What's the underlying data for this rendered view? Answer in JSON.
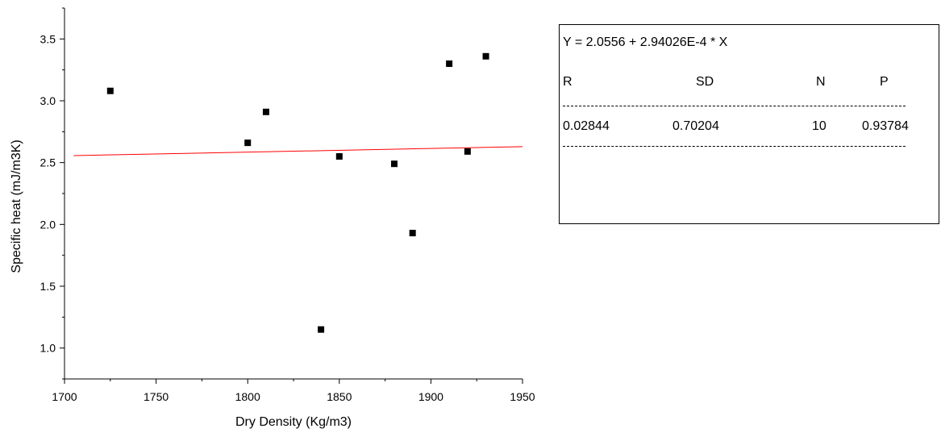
{
  "chart_data": {
    "type": "scatter",
    "title": "",
    "xlabel": "Dry Density (Kg/m3)",
    "ylabel": "Specific heat (mJ/m3K)",
    "xlim": [
      1700,
      1950
    ],
    "ylim": [
      0.75,
      3.75
    ],
    "xticks": [
      1700,
      1750,
      1800,
      1850,
      1900,
      1950
    ],
    "yticks": [
      1.0,
      1.5,
      2.0,
      2.5,
      3.0,
      3.5
    ],
    "ytick_labels": [
      "1.0",
      "1.5",
      "2.0",
      "2.5",
      "3.0",
      "3.5"
    ],
    "grid": false,
    "points": [
      {
        "x": 1725,
        "y": 3.08
      },
      {
        "x": 1800,
        "y": 2.66
      },
      {
        "x": 1810,
        "y": 2.91
      },
      {
        "x": 1840,
        "y": 1.15
      },
      {
        "x": 1850,
        "y": 2.55
      },
      {
        "x": 1880,
        "y": 2.49
      },
      {
        "x": 1890,
        "y": 1.93
      },
      {
        "x": 1910,
        "y": 3.3
      },
      {
        "x": 1920,
        "y": 2.59
      },
      {
        "x": 1930,
        "y": 3.36
      }
    ],
    "fit": {
      "intercept": 2.0556,
      "slope": 0.000294026,
      "x_range": [
        1705,
        1950
      ],
      "color": "#ff0000"
    },
    "marker_color": "#000000"
  },
  "stats": {
    "equation": "Y = 2.0556 + 2.94026E-4 * X",
    "headers": [
      "R",
      "SD",
      "N",
      "P"
    ],
    "values": [
      "0.02844",
      "0.70204",
      "10",
      "0.93784"
    ],
    "dashes": "----------------------------------------------------------------"
  }
}
